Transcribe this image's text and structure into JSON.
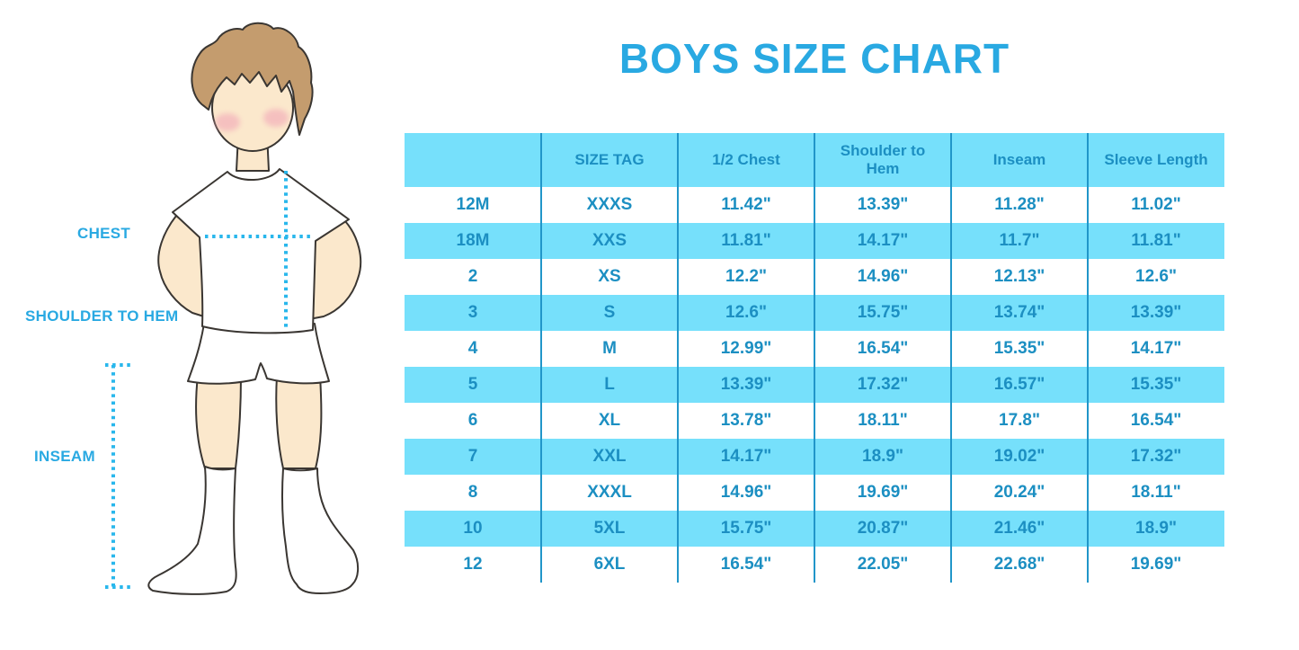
{
  "title": "BOYS SIZE CHART",
  "colors": {
    "title-blue": "#29A9E2",
    "stripe": "#76E0FB",
    "text-blue": "#1C8FC2",
    "divider": "#2196C9",
    "dot": "#29B7EC",
    "skin": "#FBE8CC",
    "hair": "#C49C6E",
    "cheek": "#F2A9B8",
    "outline": "#3A3632"
  },
  "figure": {
    "labels": {
      "chest": "CHEST",
      "shoulder_to_hem": "SHOULDER TO HEM",
      "inseam": "INSEAM"
    }
  },
  "chart_data": {
    "type": "table",
    "title": "BOYS SIZE CHART",
    "columns": [
      "",
      "SIZE TAG",
      "1/2 Chest",
      "Shoulder to Hem",
      "Inseam",
      "Sleeve Length"
    ],
    "rows": [
      [
        "12M",
        "XXXS",
        "11.42\"",
        "13.39\"",
        "11.28\"",
        "11.02\""
      ],
      [
        "18M",
        "XXS",
        "11.81\"",
        "14.17\"",
        "11.7\"",
        "11.81\""
      ],
      [
        "2",
        "XS",
        "12.2\"",
        "14.96\"",
        "12.13\"",
        "12.6\""
      ],
      [
        "3",
        "S",
        "12.6\"",
        "15.75\"",
        "13.74\"",
        "13.39\""
      ],
      [
        "4",
        "M",
        "12.99\"",
        "16.54\"",
        "15.35\"",
        "14.17\""
      ],
      [
        "5",
        "L",
        "13.39\"",
        "17.32\"",
        "16.57\"",
        "15.35\""
      ],
      [
        "6",
        "XL",
        "13.78\"",
        "18.11\"",
        "17.8\"",
        "16.54\""
      ],
      [
        "7",
        "XXL",
        "14.17\"",
        "18.9\"",
        "19.02\"",
        "17.32\""
      ],
      [
        "8",
        "XXXL",
        "14.96\"",
        "19.69\"",
        "20.24\"",
        "18.11\""
      ],
      [
        "10",
        "5XL",
        "15.75\"",
        "20.87\"",
        "21.46\"",
        "18.9\""
      ],
      [
        "12",
        "6XL",
        "16.54\"",
        "22.05\"",
        "22.68\"",
        "19.69\""
      ]
    ],
    "layout": {
      "header_fill": "#76E0FB",
      "stripe_fill": "#76E0FB",
      "striped_row_indices": [
        1,
        3,
        5,
        7,
        9
      ],
      "grid": "vertical-dividers-only"
    }
  }
}
